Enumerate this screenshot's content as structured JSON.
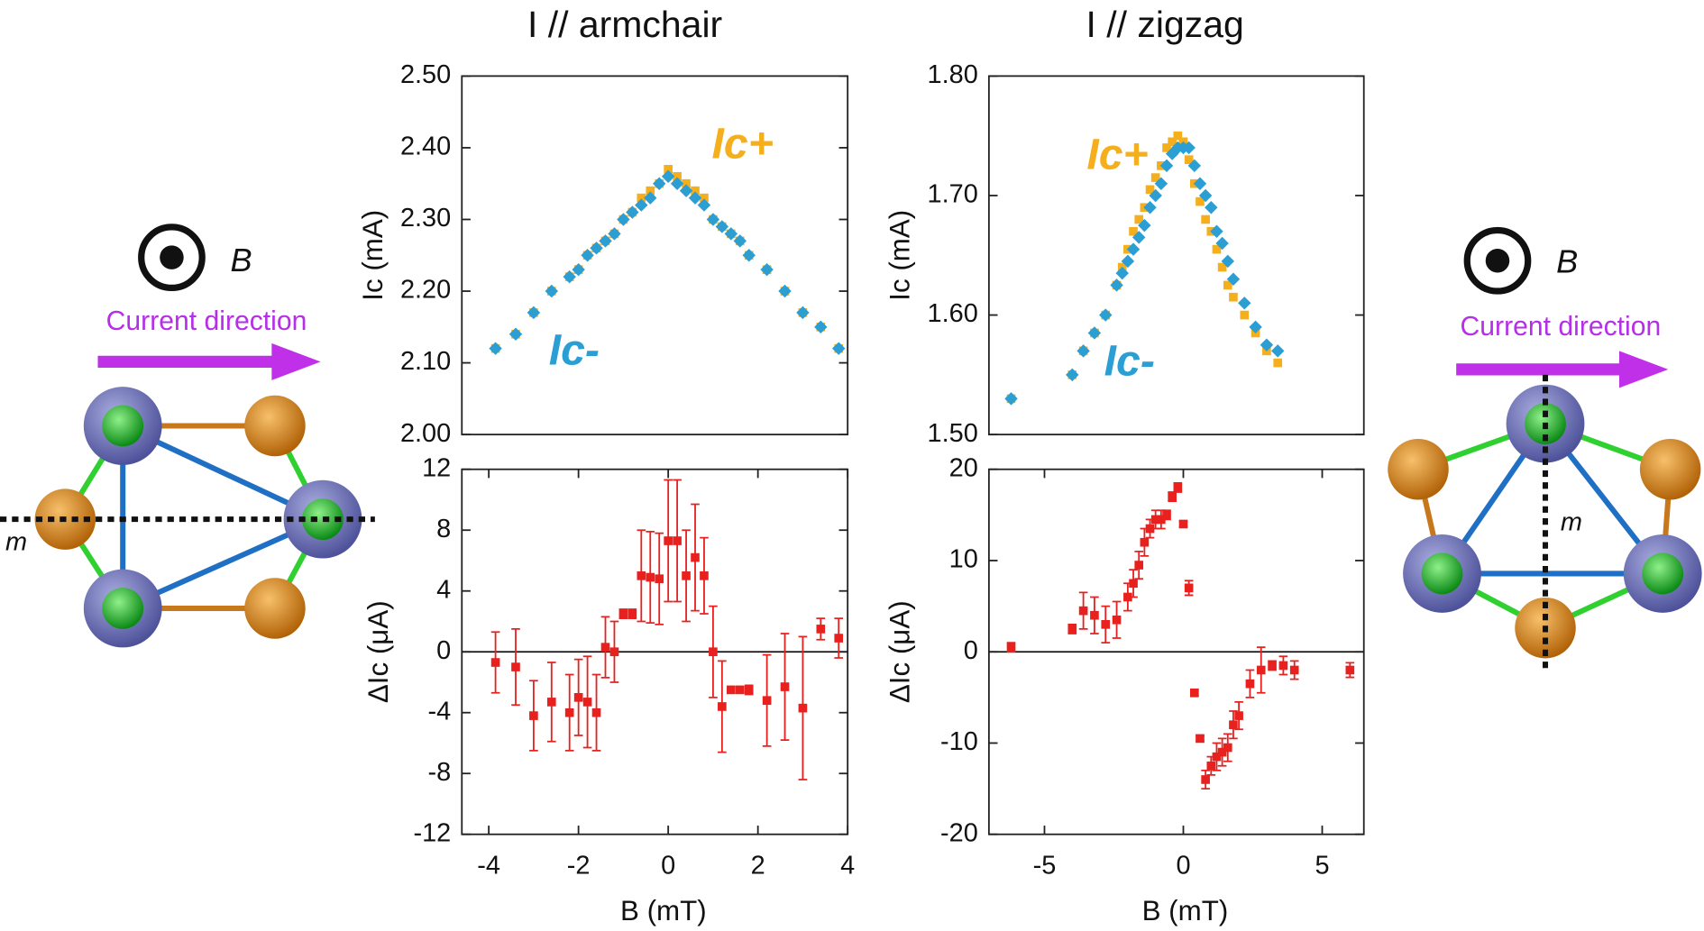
{
  "chart_data": [
    {
      "type": "scatter",
      "title": "I // armchair",
      "y_label": "Ic (mA)",
      "x": [
        -3.85,
        -3.4,
        -3.0,
        -2.6,
        -2.2,
        -2.0,
        -1.8,
        -1.6,
        -1.4,
        -1.2,
        -1.0,
        -0.8,
        -0.6,
        -0.4,
        -0.2,
        0,
        0.2,
        0.4,
        0.6,
        0.8,
        1.0,
        1.2,
        1.4,
        1.6,
        1.8,
        2.2,
        2.6,
        3.0,
        3.4,
        3.8
      ],
      "series": [
        {
          "name": "Ic+",
          "color": "#f5ae1c",
          "marker": "square",
          "values": [
            2.12,
            2.14,
            2.17,
            2.2,
            2.22,
            2.23,
            2.25,
            2.26,
            2.27,
            2.28,
            2.3,
            2.31,
            2.33,
            2.34,
            2.35,
            2.37,
            2.36,
            2.35,
            2.34,
            2.33,
            2.3,
            2.29,
            2.28,
            2.27,
            2.25,
            2.23,
            2.2,
            2.17,
            2.15,
            2.12
          ]
        },
        {
          "name": "Ic-",
          "color": "#2b9fd4",
          "marker": "diamond",
          "values": [
            2.12,
            2.14,
            2.17,
            2.2,
            2.22,
            2.23,
            2.25,
            2.26,
            2.27,
            2.28,
            2.3,
            2.31,
            2.32,
            2.33,
            2.35,
            2.36,
            2.35,
            2.34,
            2.33,
            2.32,
            2.3,
            2.29,
            2.28,
            2.27,
            2.25,
            2.23,
            2.2,
            2.17,
            2.15,
            2.12
          ]
        }
      ],
      "xlim": [
        -4.6,
        4
      ],
      "ylim": [
        2.0,
        2.5
      ],
      "yticks": [
        {
          "value": 2.0,
          "label": "2.00"
        },
        {
          "value": 2.1,
          "label": "2.10"
        },
        {
          "value": 2.2,
          "label": "2.20"
        },
        {
          "value": 2.3,
          "label": "2.30"
        },
        {
          "value": 2.4,
          "label": "2.40"
        },
        {
          "value": 2.5,
          "label": "2.50"
        }
      ]
    },
    {
      "type": "scatter",
      "title": "I // zigzag",
      "y_label": "Ic (mA)",
      "x": [
        -6.2,
        -4.0,
        -3.6,
        -3.2,
        -2.8,
        -2.4,
        -2.2,
        -2.0,
        -1.8,
        -1.6,
        -1.4,
        -1.2,
        -1.0,
        -0.8,
        -0.6,
        -0.4,
        -0.2,
        0,
        0.2,
        0.4,
        0.6,
        0.8,
        1.0,
        1.2,
        1.4,
        1.6,
        1.8,
        2.2,
        2.6,
        3.0,
        3.4
      ],
      "series": [
        {
          "name": "Ic+",
          "color": "#f5ae1c",
          "marker": "square",
          "values": [
            1.53,
            1.55,
            1.57,
            1.585,
            1.6,
            1.625,
            1.64,
            1.655,
            1.67,
            1.68,
            1.69,
            1.705,
            1.715,
            1.725,
            1.74,
            1.745,
            1.75,
            1.745,
            1.73,
            1.71,
            1.695,
            1.68,
            1.67,
            1.655,
            1.64,
            1.625,
            1.615,
            1.6,
            1.585,
            1.57,
            1.56
          ]
        },
        {
          "name": "Ic-",
          "color": "#2b9fd4",
          "marker": "diamond",
          "values": [
            1.53,
            1.55,
            1.57,
            1.585,
            1.6,
            1.625,
            1.635,
            1.645,
            1.655,
            1.665,
            1.675,
            1.69,
            1.7,
            1.71,
            1.725,
            1.735,
            1.74,
            1.74,
            1.74,
            1.725,
            1.71,
            1.7,
            1.69,
            1.67,
            1.66,
            1.645,
            1.63,
            1.61,
            1.59,
            1.575,
            1.57
          ]
        }
      ],
      "xlim": [
        -7,
        6.5
      ],
      "ylim": [
        1.5,
        1.8
      ],
      "yticks": [
        {
          "value": 1.5,
          "label": "1.50"
        },
        {
          "value": 1.6,
          "label": "1.60"
        },
        {
          "value": 1.7,
          "label": "1.70"
        },
        {
          "value": 1.8,
          "label": "1.80"
        }
      ]
    },
    {
      "type": "scatter",
      "y_label": "ΔIc (μA)",
      "x_label": "B (mT)",
      "zero_line": true,
      "x": [
        -3.85,
        -3.4,
        -3.0,
        -2.6,
        -2.2,
        -2.0,
        -1.8,
        -1.6,
        -1.4,
        -1.2,
        -1.0,
        -0.8,
        -0.6,
        -0.4,
        -0.2,
        0,
        0.2,
        0.4,
        0.6,
        0.8,
        1.0,
        1.2,
        1.4,
        1.6,
        1.8,
        2.2,
        2.6,
        3.0,
        3.4,
        3.8
      ],
      "series": [
        {
          "color": "#e8201e",
          "marker": "square",
          "values": [
            -0.7,
            -1,
            -4.2,
            -3.3,
            -4,
            -3,
            -3.3,
            -4,
            0.3,
            0,
            2.5,
            2.5,
            5,
            4.9,
            4.8,
            7.3,
            7.3,
            5,
            6.2,
            5,
            0,
            -3.6,
            -2.5,
            -2.5,
            -2.5,
            -3.2,
            -2.3,
            -3.7,
            1.5,
            0.9
          ],
          "errors": [
            2,
            2.5,
            2.3,
            2.6,
            2.5,
            2.5,
            3,
            2.5,
            2,
            2,
            0.3,
            0.3,
            3,
            3,
            3,
            4,
            4,
            3,
            3.5,
            2.5,
            3,
            3,
            0.2,
            0.2,
            0.3,
            3,
            3.5,
            4.7,
            0.7,
            1.3
          ]
        }
      ],
      "xlim": [
        -4.6,
        4
      ],
      "ylim": [
        -12,
        12
      ],
      "xticks": [
        -4,
        -2,
        0,
        2,
        4
      ],
      "yticks": [
        -12,
        -8,
        -4,
        0,
        4,
        8,
        12
      ]
    },
    {
      "type": "scatter",
      "y_label": "ΔIc (μA)",
      "x_label": "B (mT)",
      "zero_line": true,
      "x": [
        -6.2,
        -4.0,
        -3.6,
        -3.2,
        -2.8,
        -2.4,
        -2.0,
        -1.8,
        -1.6,
        -1.4,
        -1.2,
        -1.0,
        -0.8,
        -0.6,
        -0.4,
        -0.2,
        0,
        0.2,
        0.4,
        0.6,
        0.8,
        1.0,
        1.2,
        1.4,
        1.6,
        1.8,
        2.0,
        2.4,
        2.8,
        3.2,
        3.6,
        4.0,
        6.0
      ],
      "series": [
        {
          "color": "#e8201e",
          "marker": "square",
          "values": [
            0.5,
            2.5,
            4.5,
            4,
            3,
            3.5,
            6,
            7.5,
            9.5,
            12,
            13.5,
            14.5,
            14.5,
            15,
            17,
            18,
            14,
            7,
            -4.5,
            -9.5,
            -14,
            -12.5,
            -11.5,
            -11,
            -10.5,
            -8,
            -7,
            -3.5,
            -2,
            -1.5,
            -1.5,
            -2,
            -2
          ],
          "errors": [
            0.5,
            0.5,
            2,
            2,
            2,
            2,
            1.5,
            1.5,
            1.5,
            1.5,
            1,
            1,
            1,
            0.5,
            0.5,
            0.5,
            0.3,
            0.8,
            0.3,
            0.3,
            1,
            1,
            1.5,
            1.5,
            1.5,
            1.5,
            1.5,
            1.5,
            2.5,
            0.5,
            1,
            1,
            0.8
          ]
        }
      ],
      "xlim": [
        -7,
        6.5
      ],
      "ylim": [
        -20,
        20
      ],
      "xticks": [
        -5,
        0,
        5
      ],
      "yticks": [
        -20,
        -10,
        0,
        10,
        20
      ]
    }
  ],
  "diagrams": [
    {
      "field": "B",
      "current": "Current direction",
      "mirror": "m"
    },
    {
      "field": "B",
      "current": "Current direction",
      "mirror": "m"
    }
  ]
}
